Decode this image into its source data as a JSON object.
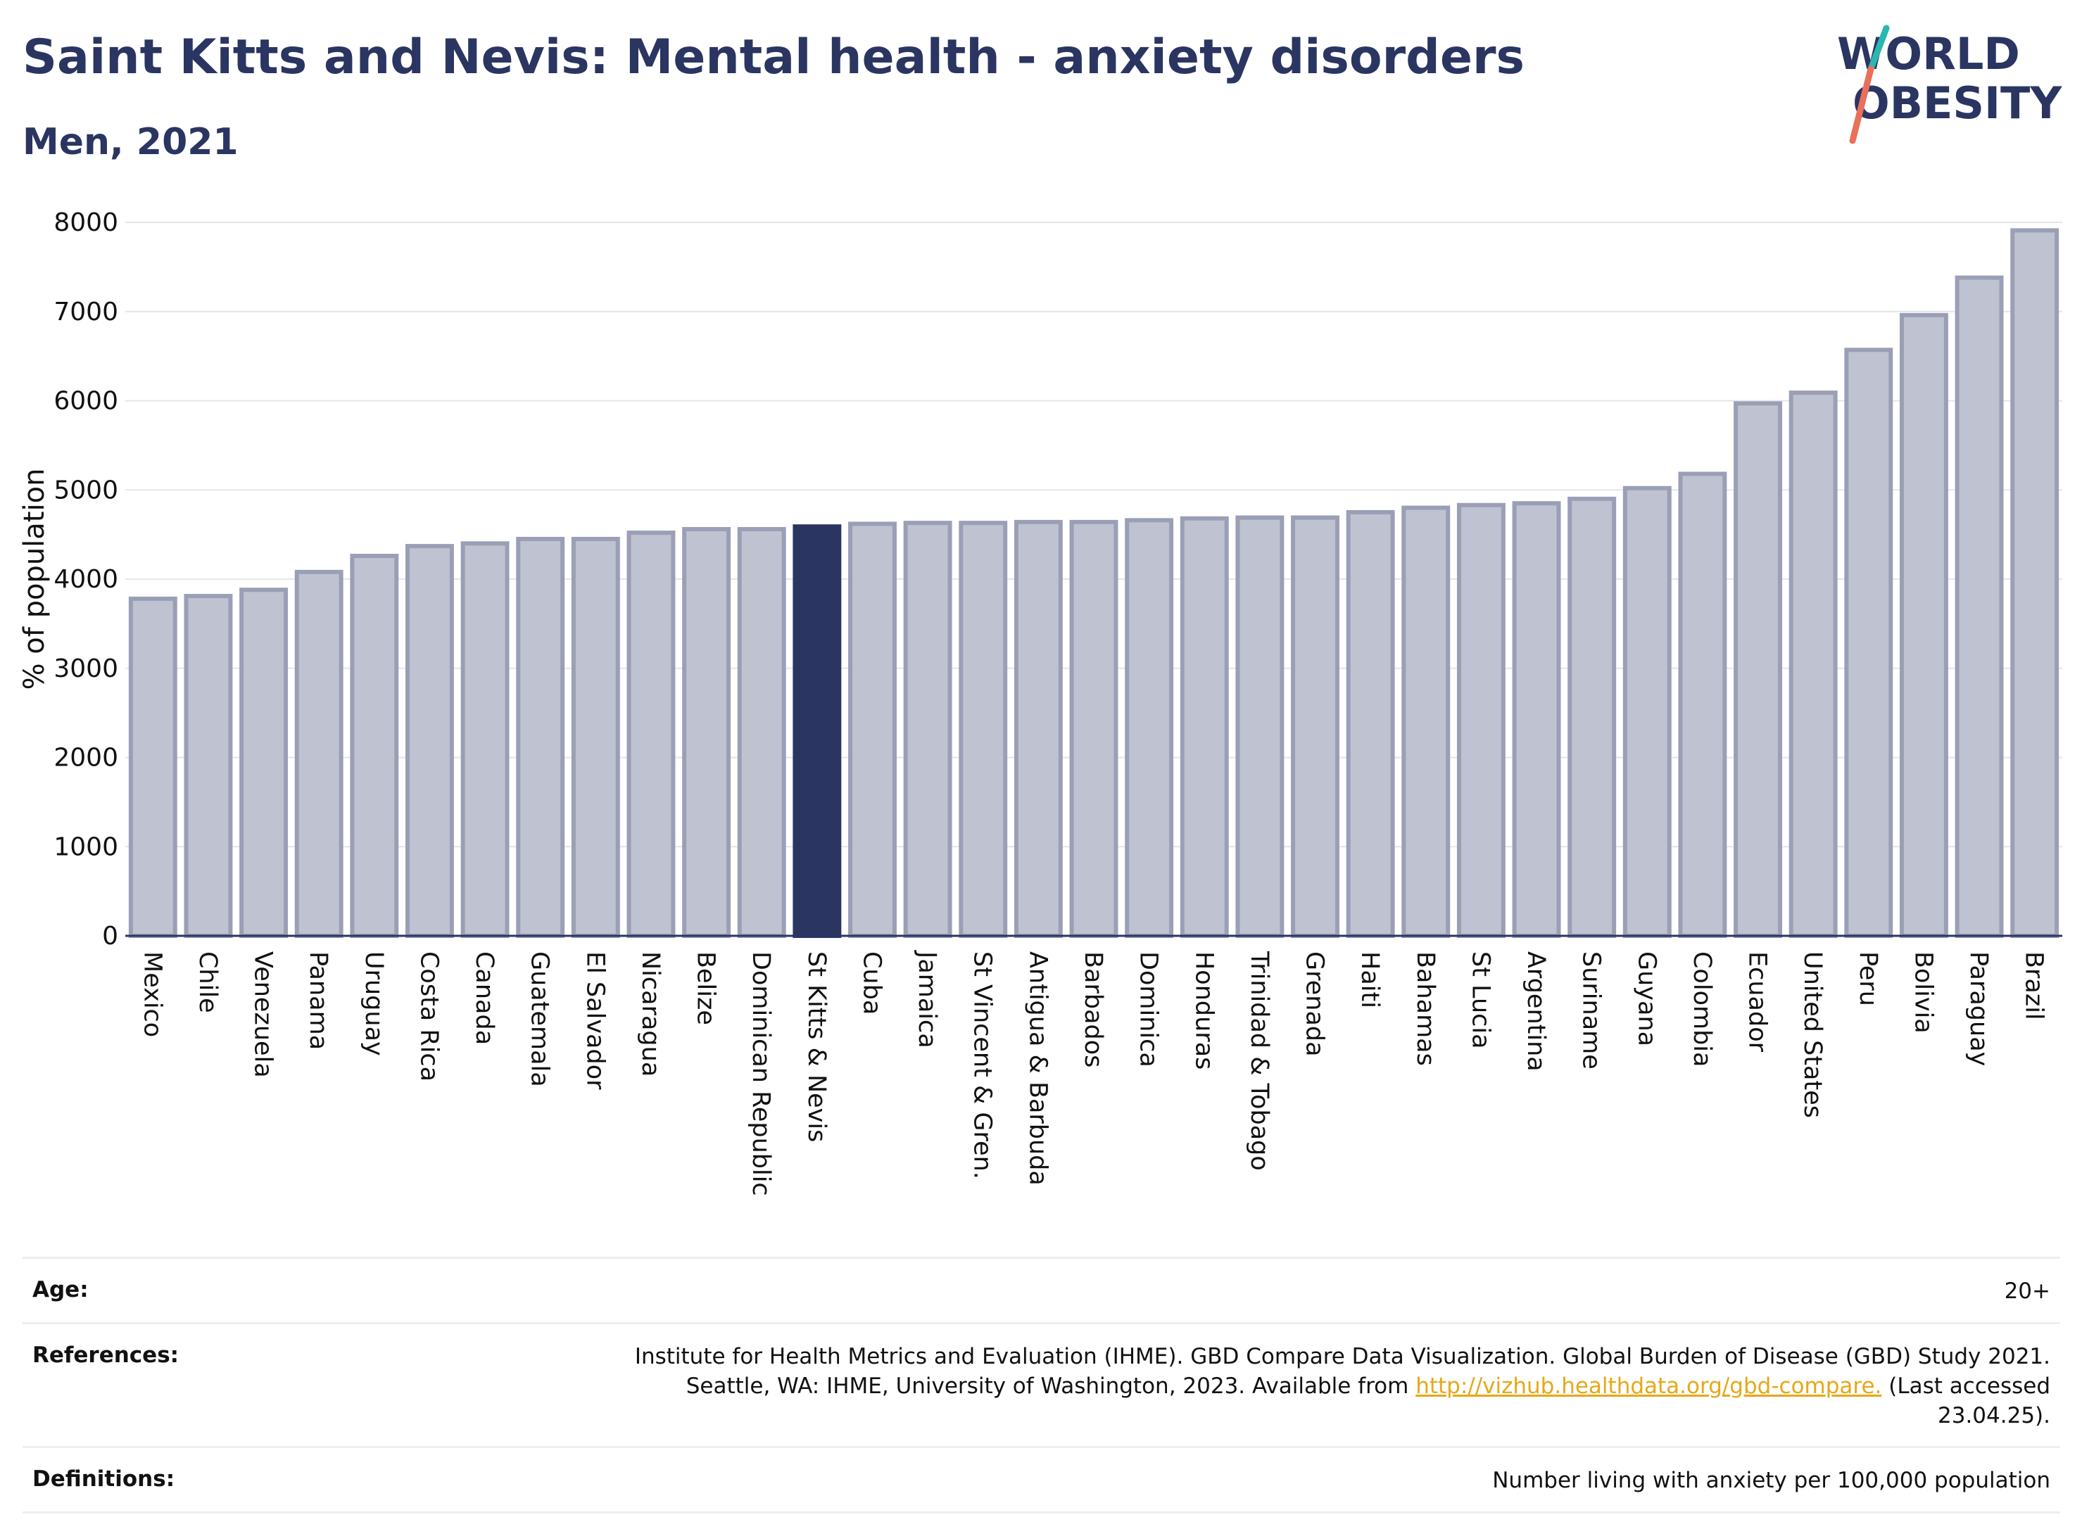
{
  "header": {
    "title": "Saint Kitts and Nevis: Mental health - anxiety disorders",
    "subtitle": "Men, 2021"
  },
  "logo": {
    "line1": "WORLD",
    "line2": "OBESITY"
  },
  "chart_data": {
    "type": "bar",
    "ylabel": "% of population",
    "ylim": [
      0,
      8000
    ],
    "yticks": [
      0,
      1000,
      2000,
      3000,
      4000,
      5000,
      6000,
      7000,
      8000
    ],
    "grid": true,
    "highlight": "St Kitts & Nevis",
    "categories": [
      "Mexico",
      "Chile",
      "Venezuela",
      "Panama",
      "Uruguay",
      "Costa Rica",
      "Canada",
      "Guatemala",
      "El Salvador",
      "Nicaragua",
      "Belize",
      "Dominican Republic",
      "St Kitts & Nevis",
      "Cuba",
      "Jamaica",
      "St Vincent & Gren.",
      "Antigua & Barbuda",
      "Barbados",
      "Dominica",
      "Honduras",
      "Trinidad & Tobago",
      "Grenada",
      "Haiti",
      "Bahamas",
      "St Lucia",
      "Argentina",
      "Suriname",
      "Guyana",
      "Colombia",
      "Ecuador",
      "United States",
      "Peru",
      "Bolivia",
      "Paraguay",
      "Brazil"
    ],
    "values": [
      3780,
      3810,
      3880,
      4080,
      4260,
      4370,
      4400,
      4450,
      4450,
      4520,
      4560,
      4560,
      4590,
      4620,
      4630,
      4630,
      4640,
      4640,
      4660,
      4680,
      4690,
      4690,
      4750,
      4800,
      4830,
      4850,
      4900,
      5020,
      5180,
      5970,
      6090,
      6570,
      6960,
      7380,
      7910
    ],
    "colors": {
      "bar": "#bfc2d0",
      "bar_edge": "#9a9fb6",
      "highlight": "#2b3561"
    }
  },
  "meta": {
    "age_label": "Age:",
    "age_value": "20+",
    "references_label": "References:",
    "references_line1": "Institute for Health Metrics and Evaluation (IHME). GBD Compare Data Visualization. Global Burden of Disease (GBD) Study 2021.",
    "references_line2_pre": "Seattle, WA: IHME, University of Washington, 2023. Available from",
    "references_link": "http://vizhub.healthdata.org/gbd-compare.",
    "references_line2_post": "(Last accessed",
    "references_line3": "23.04.25).",
    "definitions_label": "Definitions:",
    "definitions_value": "Number living with anxiety per 100,000 population"
  }
}
